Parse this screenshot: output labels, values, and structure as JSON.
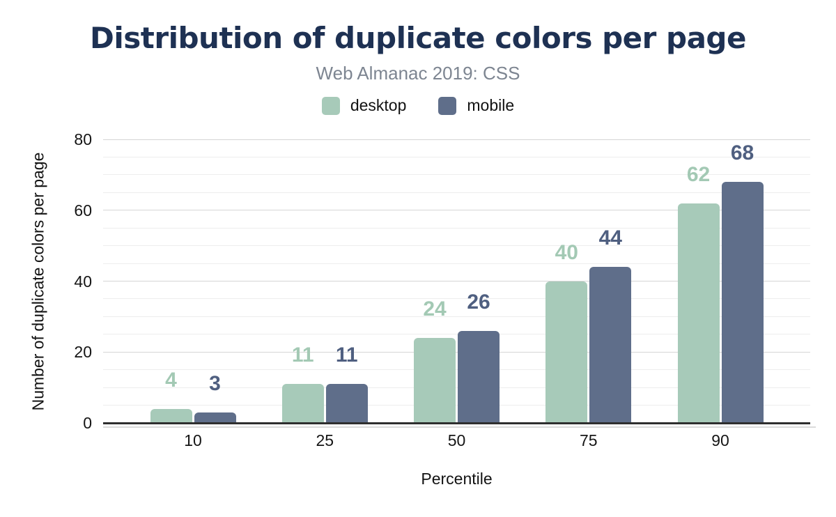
{
  "chart_data": {
    "type": "bar",
    "title": "Distribution of duplicate colors per page",
    "subtitle": "Web Almanac 2019: CSS",
    "categories": [
      "10",
      "25",
      "50",
      "75",
      "90"
    ],
    "series": [
      {
        "name": "desktop",
        "values": [
          4,
          11,
          24,
          40,
          62
        ],
        "color": "#a7cab9",
        "label_color": "#a3c9b4"
      },
      {
        "name": "mobile",
        "values": [
          3,
          11,
          26,
          44,
          68
        ],
        "color": "#5f6e8a",
        "label_color": "#4f5f80"
      }
    ],
    "xlabel": "Percentile",
    "ylabel": "Number of duplicate colors per page",
    "ylim": [
      0,
      80
    ],
    "y_major_ticks": [
      0,
      20,
      40,
      60,
      80
    ],
    "y_minor_step": 5,
    "grid": "horizontal-major-and-minor",
    "legend_position": "top",
    "data_labels": true
  },
  "colors": {
    "title": "#1e3153",
    "subtitle": "#7d8591",
    "axis_line": "#2f2f2f",
    "grid_major": "#d5d5d5",
    "grid_minor": "#ededed",
    "tick_label": "#151515"
  }
}
